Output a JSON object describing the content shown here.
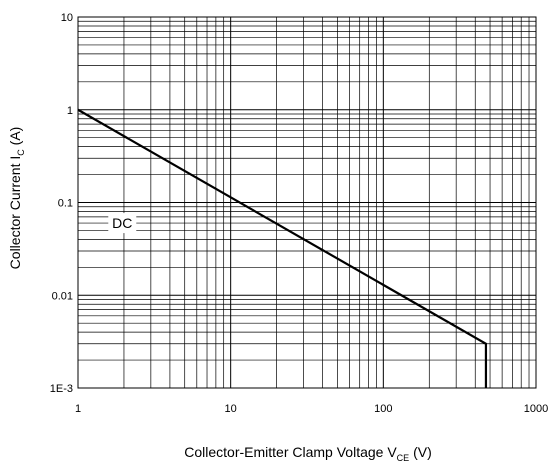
{
  "chart_data": {
    "type": "line",
    "title": "",
    "xlabel": {
      "main": "Collector-Emitter Clamp Voltage V",
      "sub": "CE",
      "suffix": " (V)"
    },
    "ylabel": {
      "main": "Collector Current I",
      "sub": "C",
      "suffix": " (A)"
    },
    "xscale": "log",
    "yscale": "log",
    "xlim": [
      1,
      1000
    ],
    "ylim": [
      0.001,
      10
    ],
    "x_ticks": [
      {
        "value": 1,
        "label": "1"
      },
      {
        "value": 10,
        "label": "10"
      },
      {
        "value": 100,
        "label": "100"
      },
      {
        "value": 1000,
        "label": "1000"
      }
    ],
    "y_ticks": [
      {
        "value": 0.001,
        "label": "1E-3"
      },
      {
        "value": 0.01,
        "label": "0.01"
      },
      {
        "value": 0.1,
        "label": "0.1"
      },
      {
        "value": 1,
        "label": "1"
      },
      {
        "value": 10,
        "label": "10"
      }
    ],
    "grid": true,
    "series": [
      {
        "points": [
          {
            "x": 1,
            "y": 1.0
          },
          {
            "x": 470,
            "y": 0.003
          },
          {
            "x": 470,
            "y": 0.001
          }
        ]
      }
    ],
    "annotations": [
      {
        "text": "DC",
        "x": 1.95,
        "y": 0.06
      }
    ]
  }
}
